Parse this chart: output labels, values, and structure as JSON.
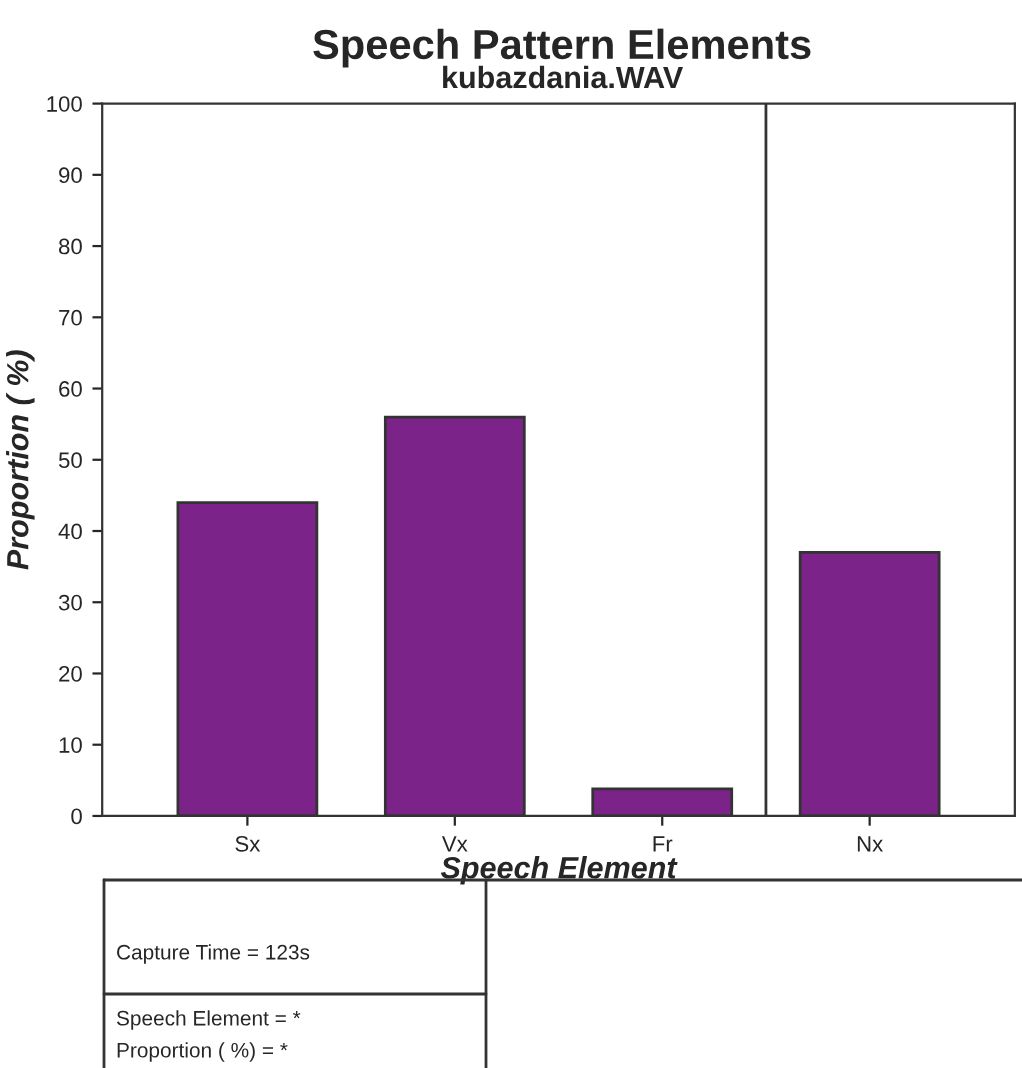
{
  "chart_data": {
    "type": "bar",
    "title": "Speech Pattern Elements",
    "subtitle": "kubazdania.WAV",
    "xlabel": "Speech Element",
    "ylabel": "Proportion ( %)",
    "categories": [
      "Sx",
      "Vx",
      "Fr",
      "Nx"
    ],
    "values": [
      44,
      56,
      3.8,
      37
    ],
    "color": "#7b2388",
    "ylim": [
      0,
      100
    ],
    "yticks": [
      0,
      10,
      20,
      30,
      40,
      50,
      60,
      70,
      80,
      90,
      100
    ],
    "grid": false,
    "legend": false,
    "annotations": [
      "Capture Time = 123s",
      "Speech Element = *",
      "Proportion ( %) = *"
    ]
  }
}
